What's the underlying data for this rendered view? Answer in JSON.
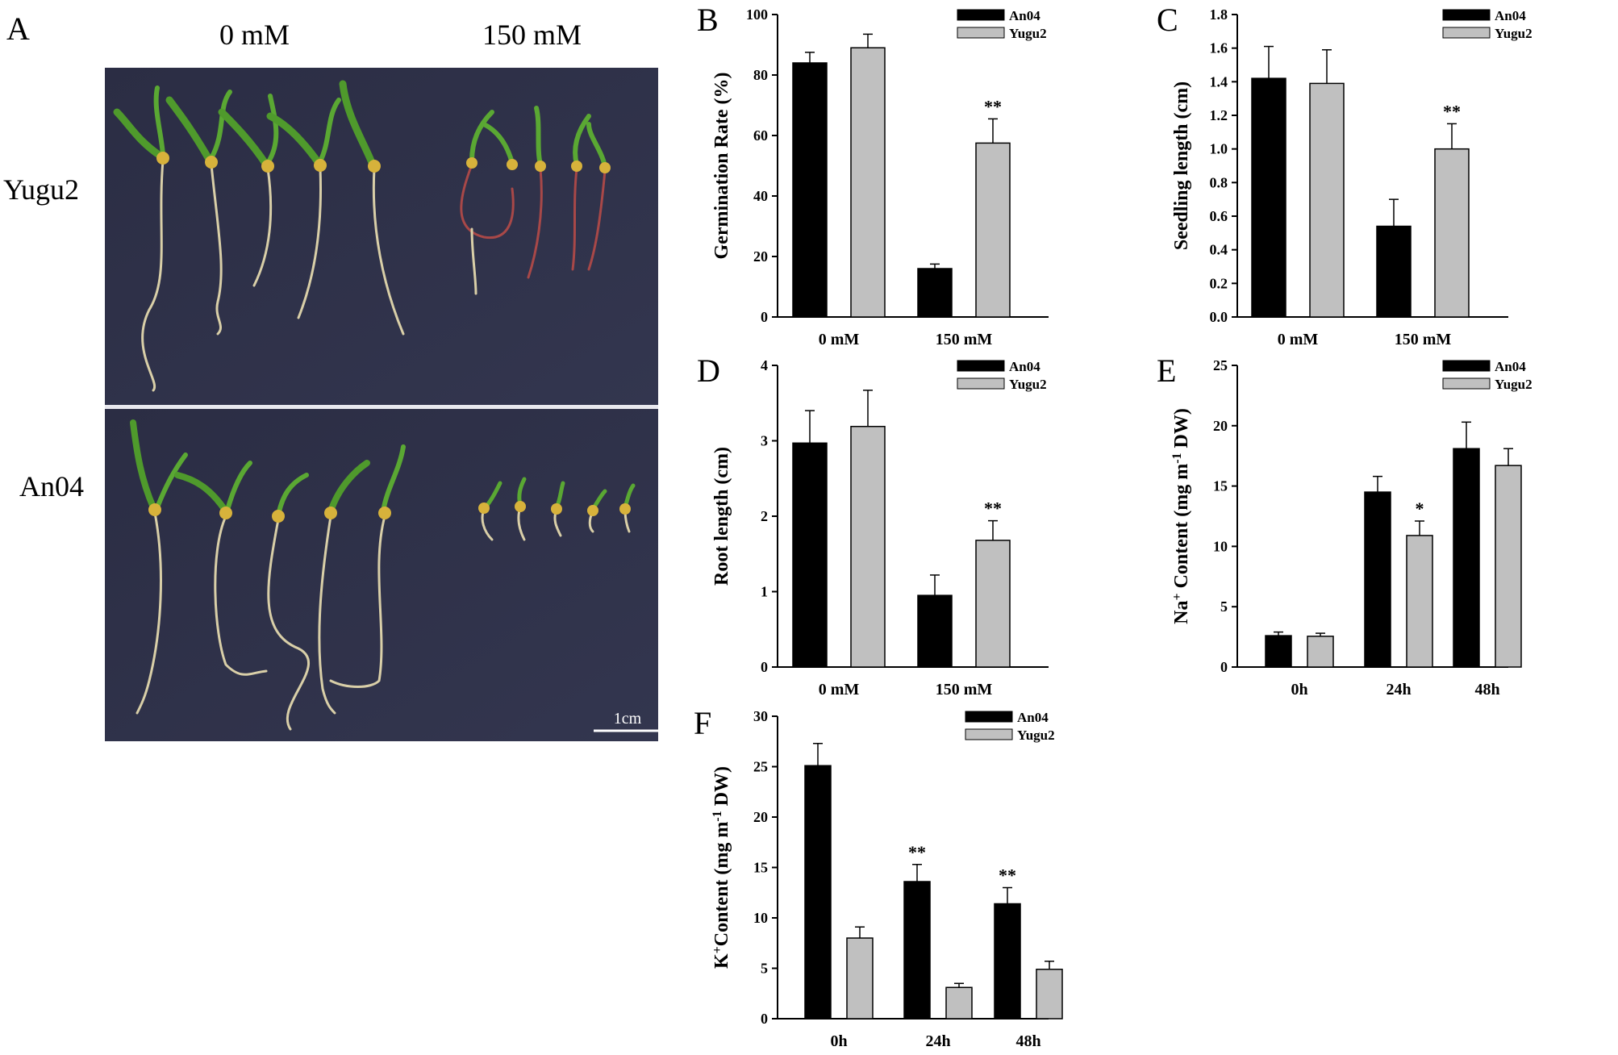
{
  "panelA": {
    "letter": "A",
    "col_labels": [
      "0 mM",
      "150 mM"
    ],
    "row_labels": [
      "Yugu2",
      "An04"
    ],
    "scale_bar": "1cm"
  },
  "legend": [
    "An04",
    "Yugu2"
  ],
  "colors": {
    "an04": "#000000",
    "yugu2": "#c0c0c0"
  },
  "chart_data": [
    {
      "id": "B",
      "letter": "B",
      "type": "bar",
      "categories": [
        "0 mM",
        "150 mM"
      ],
      "ylabel": "Germination Rate (%)",
      "ylim": [
        0,
        100
      ],
      "yticks": [
        "0",
        "20",
        "40",
        "60",
        "80",
        "100"
      ],
      "series": [
        {
          "name": "An04",
          "values": [
            84,
            16
          ],
          "errors": [
            3.5,
            1.5
          ],
          "marks": [
            "",
            ""
          ]
        },
        {
          "name": "Yugu2",
          "values": [
            89,
            57.5
          ],
          "errors": [
            4.5,
            8
          ],
          "marks": [
            "",
            "**"
          ]
        }
      ]
    },
    {
      "id": "C",
      "letter": "C",
      "type": "bar",
      "categories": [
        "0 mM",
        "150 mM"
      ],
      "ylabel": "Seedling length (cm)",
      "ylim": [
        0,
        1.8
      ],
      "yticks": [
        "0.0",
        "0.2",
        "0.4",
        "0.6",
        "0.8",
        "1.0",
        "1.2",
        "1.4",
        "1.6",
        "1.8"
      ],
      "series": [
        {
          "name": "An04",
          "values": [
            1.42,
            0.54
          ],
          "errors": [
            0.19,
            0.16
          ],
          "marks": [
            "",
            ""
          ]
        },
        {
          "name": "Yugu2",
          "values": [
            1.39,
            1.0
          ],
          "errors": [
            0.2,
            0.15
          ],
          "marks": [
            "",
            "**"
          ]
        }
      ]
    },
    {
      "id": "D",
      "letter": "D",
      "type": "bar",
      "categories": [
        "0 mM",
        "150 mM"
      ],
      "ylabel": "Root length (cm)",
      "ylim": [
        0,
        4
      ],
      "yticks": [
        "0",
        "1",
        "2",
        "3",
        "4"
      ],
      "series": [
        {
          "name": "An04",
          "values": [
            2.97,
            0.95
          ],
          "errors": [
            0.43,
            0.27
          ],
          "marks": [
            "",
            ""
          ]
        },
        {
          "name": "Yugu2",
          "values": [
            3.19,
            1.68
          ],
          "errors": [
            0.48,
            0.26
          ],
          "marks": [
            "",
            "**"
          ]
        }
      ]
    },
    {
      "id": "E",
      "letter": "E",
      "type": "bar",
      "categories": [
        "0h",
        "24h",
        "48h"
      ],
      "ylabel_parts": [
        "Na",
        "+",
        " Content (mg m",
        "-1",
        " DW)"
      ],
      "ylim": [
        0,
        25
      ],
      "yticks": [
        "0",
        "5",
        "10",
        "15",
        "20",
        "25"
      ],
      "series": [
        {
          "name": "An04",
          "values": [
            2.6,
            14.5,
            18.1
          ],
          "errors": [
            0.3,
            1.3,
            2.2
          ],
          "marks": [
            "",
            "",
            ""
          ]
        },
        {
          "name": "Yugu2",
          "values": [
            2.55,
            10.9,
            16.7
          ],
          "errors": [
            0.25,
            1.2,
            1.4
          ],
          "marks": [
            "",
            "*",
            ""
          ]
        }
      ]
    },
    {
      "id": "F",
      "letter": "F",
      "type": "bar",
      "categories": [
        "0h",
        "24h",
        "48h"
      ],
      "ylabel_parts": [
        "K",
        "+",
        "Content (mg m",
        "-1",
        " DW)"
      ],
      "ylim": [
        0,
        30
      ],
      "yticks": [
        "0",
        "5",
        "10",
        "15",
        "20",
        "25",
        "30"
      ],
      "series": [
        {
          "name": "An04",
          "values": [
            25.1,
            13.6,
            11.4
          ],
          "errors": [
            2.2,
            1.7,
            1.6
          ],
          "marks": [
            "",
            "**",
            "**"
          ]
        },
        {
          "name": "Yugu2",
          "values": [
            8.0,
            3.1,
            4.9
          ],
          "errors": [
            1.1,
            0.4,
            0.8
          ],
          "marks": [
            "",
            "",
            ""
          ]
        }
      ]
    }
  ]
}
